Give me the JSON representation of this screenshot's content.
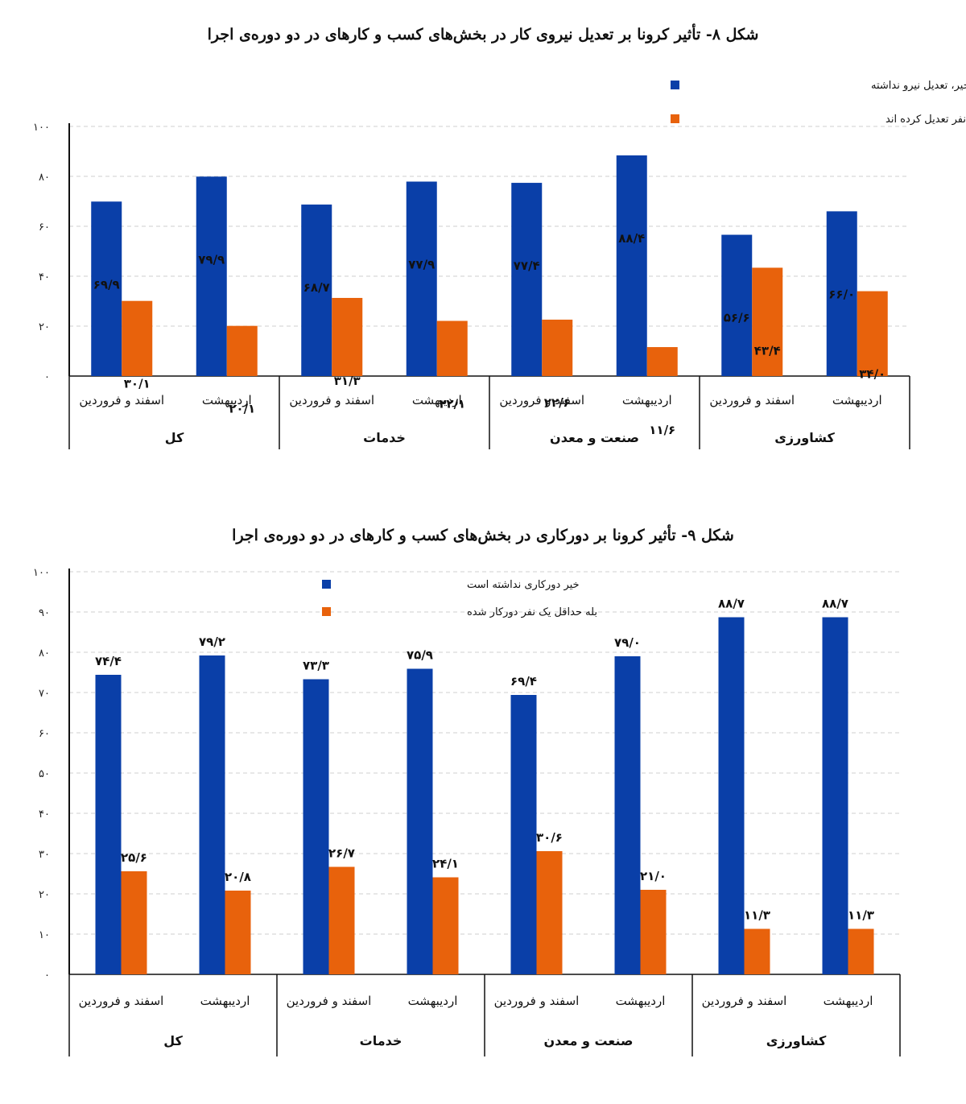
{
  "chart_data": [
    {
      "type": "bar",
      "title": "شکل ۸- تأثیر کرونا بر تعدیل نیروی کار در بخش‌های کسب و کارهای در دو دوره‌ی اجرا",
      "ylim": [
        0,
        100
      ],
      "yticks": [
        0,
        20,
        40,
        60,
        80,
        100
      ],
      "ytick_labels": [
        "۰",
        "۲۰",
        "۴۰",
        "۶۰",
        "۸۰",
        "۱۰۰"
      ],
      "groups": [
        "کل",
        "خدمات",
        "صنعت و معدن",
        "کشاورزی"
      ],
      "periods": [
        "اسفند و فروردین",
        "اردیبهشت"
      ],
      "legend": [
        "خیر، تعدیل نیرو نداشته",
        "بله، حداقل یک نفر تعدیل کرده اند"
      ],
      "colors": [
        "#0a3fa8",
        "#e8620c"
      ],
      "series": [
        {
          "name": "خیر، تعدیل نیرو نداشته",
          "values": [
            69.9,
            79.9,
            68.7,
            77.9,
            77.4,
            88.4,
            56.6,
            66.0
          ],
          "labels": [
            "۶۹/۹",
            "۷۹/۹",
            "۶۸/۷",
            "۷۷/۹",
            "۷۷/۴",
            "۸۸/۴",
            "۵۶/۶",
            "۶۶/۰"
          ]
        },
        {
          "name": "بله، حداقل یک نفر تعدیل کرده اند",
          "values": [
            30.1,
            20.1,
            31.3,
            22.1,
            22.6,
            11.6,
            43.4,
            34.0
          ],
          "labels": [
            "۳۰/۱",
            "۲۰/۱",
            "۳۱/۳",
            "۲۲/۱",
            "۲۲/۶",
            "۱۱/۶",
            "۴۳/۴",
            "۳۴/۰"
          ]
        }
      ]
    },
    {
      "type": "bar",
      "title": "شکل ۹- تأثیر کرونا بر دورکاری در بخش‌های کسب و کارهای در دو دوره‌ی اجرا",
      "ylim": [
        0,
        100
      ],
      "yticks": [
        0,
        10,
        20,
        30,
        40,
        50,
        60,
        70,
        80,
        90,
        100
      ],
      "ytick_labels": [
        "۰",
        "۱۰",
        "۲۰",
        "۳۰",
        "۴۰",
        "۵۰",
        "۶۰",
        "۷۰",
        "۸۰",
        "۹۰",
        "۱۰۰"
      ],
      "groups": [
        "کل",
        "خدمات",
        "صنعت و معدن",
        "کشاورزی"
      ],
      "periods": [
        "اسفند و فروردین",
        "اردیبهشت"
      ],
      "legend": [
        "خیر دورکاری نداشته است",
        "بله حداقل یک نفر دورکار شده"
      ],
      "colors": [
        "#0a3fa8",
        "#e8620c"
      ],
      "series": [
        {
          "name": "خیر دورکاری نداشته است",
          "values": [
            74.4,
            79.2,
            73.3,
            75.9,
            69.4,
            79.0,
            88.7,
            88.7
          ],
          "labels": [
            "۷۴/۴",
            "۷۹/۲",
            "۷۳/۳",
            "۷۵/۹",
            "۶۹/۴",
            "۷۹/۰",
            "۸۸/۷",
            "۸۸/۷"
          ]
        },
        {
          "name": "بله حداقل یک نفر دورکار شده",
          "values": [
            25.6,
            20.8,
            26.7,
            24.1,
            30.6,
            21.0,
            11.3,
            11.3
          ],
          "labels": [
            "۲۵/۶",
            "۲۰/۸",
            "۲۶/۷",
            "۲۴/۱",
            "۳۰/۶",
            "۲۱/۰",
            "۱۱/۳",
            "۱۱/۳"
          ]
        }
      ]
    }
  ]
}
